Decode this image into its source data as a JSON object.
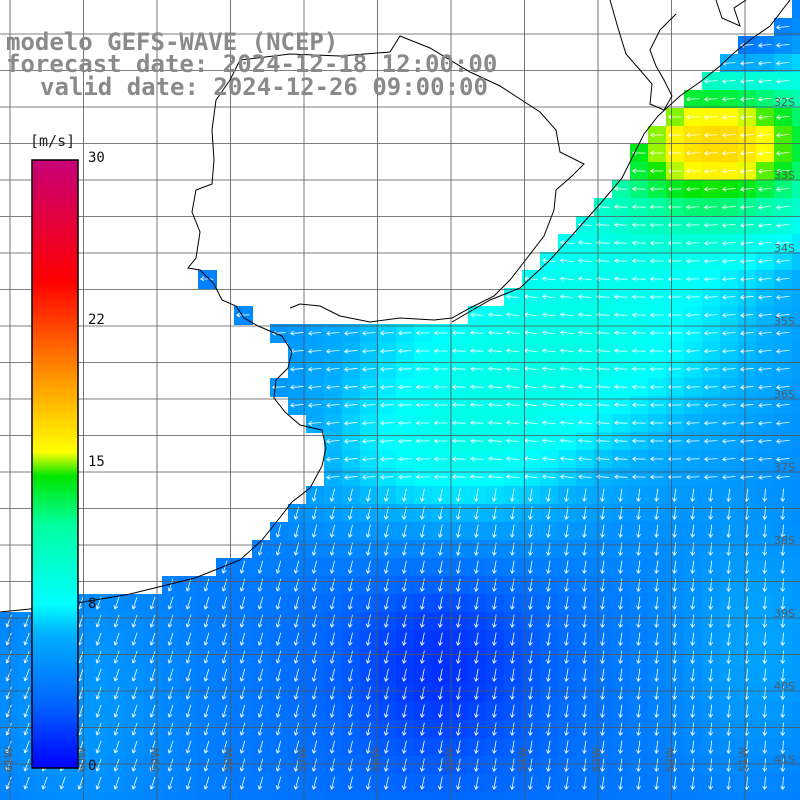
{
  "header": {
    "model": "modelo GEFS-WAVE (NCEP)",
    "forecast": "forecast date: 2024-12-18 12:00:00",
    "valid": "valid date: 2024-12-26 09:00:00"
  },
  "legend": {
    "units": "[m/s]",
    "ticks": [
      {
        "label": "30",
        "value": 30
      },
      {
        "label": "22",
        "value": 22
      },
      {
        "label": "15",
        "value": 15
      },
      {
        "label": "8",
        "value": 8
      },
      {
        "label": "0",
        "value": 0
      }
    ],
    "min": 0,
    "max": 30
  },
  "latitude_labels": [
    "32S",
    "33S",
    "34S",
    "35S",
    "36S",
    "37S",
    "38S",
    "39S",
    "40S",
    "41S"
  ],
  "longitude_labels": [
    "61W",
    "60W",
    "59W",
    "58W",
    "57W",
    "56W",
    "55W",
    "54W",
    "53W",
    "52W",
    "51W"
  ],
  "colors": {
    "land": "#ffffff",
    "coast": "#000000",
    "grid": "#555555",
    "vector": "#ffffff",
    "title": "#8a8a8a"
  }
}
